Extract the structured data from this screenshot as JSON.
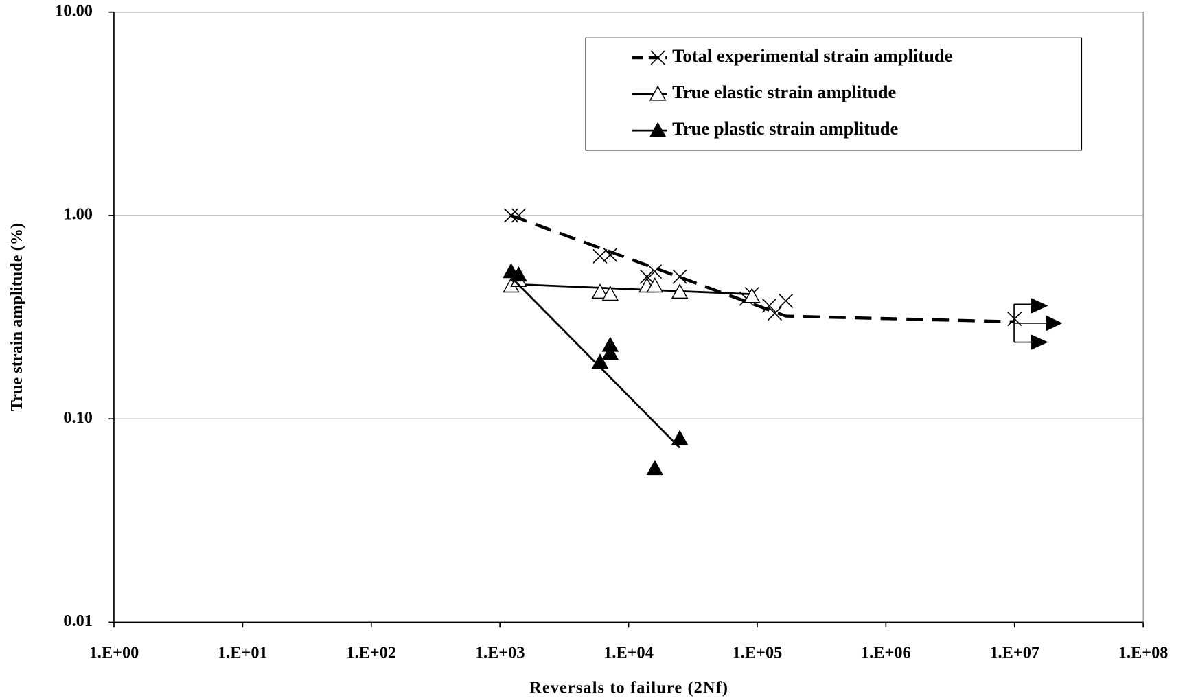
{
  "chart_data": {
    "type": "scatter",
    "x_label": "Reversals to failure (2Nf)",
    "y_label": "True strain amplitude (%)",
    "log_x": true,
    "log_y": true,
    "grid": true,
    "xlim": [
      1,
      100000000
    ],
    "xticks": [
      {
        "value": 1,
        "label": "1.E+00"
      },
      {
        "value": 10,
        "label": "1.E+01"
      },
      {
        "value": 100,
        "label": "1.E+02"
      },
      {
        "value": 1000,
        "label": "1.E+03"
      },
      {
        "value": 10000,
        "label": "1.E+04"
      },
      {
        "value": 100000,
        "label": "1.E+05"
      },
      {
        "value": 1000000,
        "label": "1.E+06"
      },
      {
        "value": 10000000,
        "label": "1.E+07"
      },
      {
        "value": 100000000,
        "label": "1.E+08"
      }
    ],
    "ylim": [
      0.01,
      10
    ],
    "yticks": [
      {
        "value": 0.01,
        "label": "0.01"
      },
      {
        "value": 0.1,
        "label": "0.10"
      },
      {
        "value": 1,
        "label": "1.00"
      },
      {
        "value": 10,
        "label": "10.00"
      }
    ],
    "series": [
      {
        "name": "Total experimental strain amplitude",
        "color": "#000000",
        "marker": "x",
        "dashed": true,
        "x": [
          1222,
          1400,
          6000,
          7200,
          13900,
          15950,
          25000,
          82600,
          91000,
          124000,
          137000,
          167000,
          10000000
        ],
        "values": [
          1.0,
          1.0,
          0.63,
          0.64,
          0.5,
          0.53,
          0.5,
          0.39,
          0.41,
          0.36,
          0.33,
          0.38,
          0.31
        ],
        "fit_x": [
          1222,
          167000,
          10000000
        ],
        "fit_values": [
          1.0,
          0.32,
          0.3
        ]
      },
      {
        "name": "True elastic strain amplitude",
        "color": "#000000",
        "marker": "open-triangle",
        "dashed": false,
        "x": [
          1222,
          1400,
          6000,
          7200,
          13900,
          16000,
          25000,
          91000
        ],
        "values": [
          0.45,
          0.48,
          0.42,
          0.41,
          0.45,
          0.45,
          0.42,
          0.4
        ],
        "fit_x": [
          1222,
          91000
        ],
        "fit_values": [
          0.46,
          0.41
        ]
      },
      {
        "name": "True plastic strain amplitude",
        "color": "#000000",
        "marker": "filled-triangle",
        "dashed": false,
        "x": [
          1222,
          1400,
          6000,
          7200,
          7200,
          16000,
          25000
        ],
        "values": [
          0.53,
          0.51,
          0.19,
          0.23,
          0.21,
          0.057,
          0.08
        ],
        "fit_x": [
          1250,
          25000
        ],
        "fit_values": [
          0.49,
          0.072
        ]
      }
    ]
  }
}
